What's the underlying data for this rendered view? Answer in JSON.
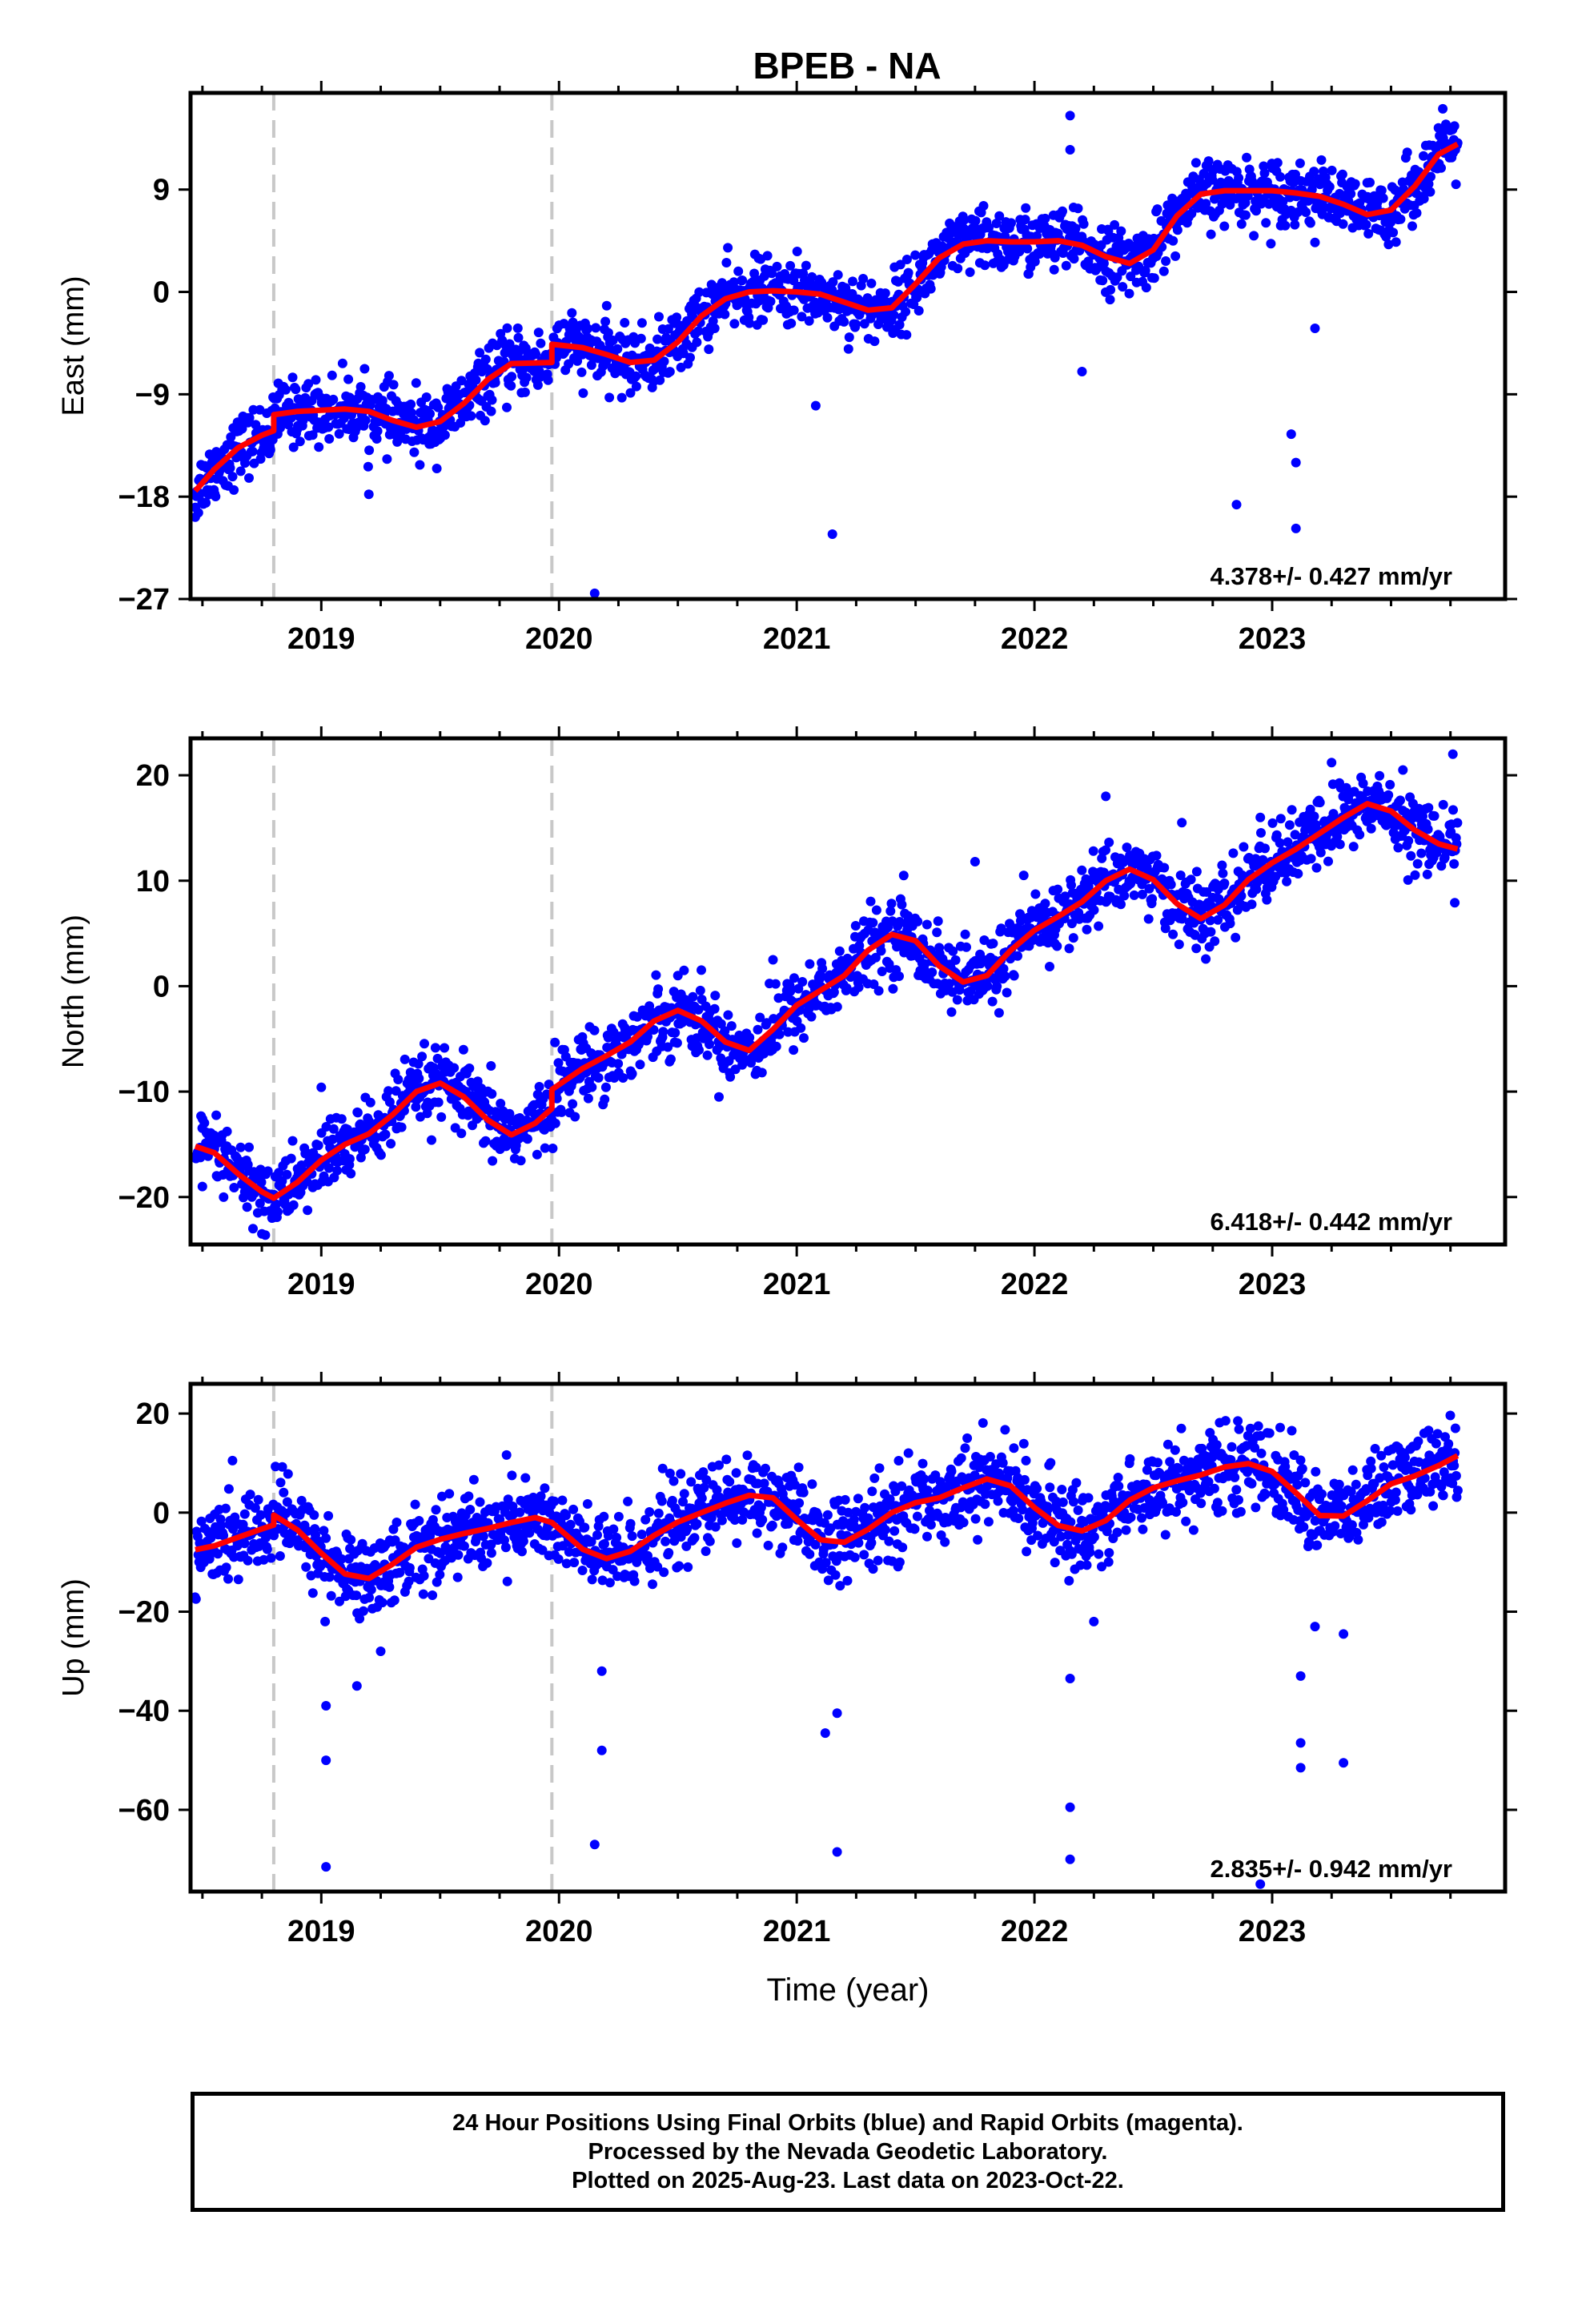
{
  "title": "BPEB - NA",
  "colors": {
    "points": "#0000ff",
    "fit": "#ff0000",
    "offset_line": "#c8c8c8",
    "frame": "#000000"
  },
  "offsets_year": [
    2018.8,
    2019.97
  ],
  "footer": {
    "line1": "24 Hour Positions Using Final Orbits (blue) and Rapid Orbits (magenta).",
    "line2": "Processed by the Nevada Geodetic Laboratory.",
    "line3": "Plotted on 2025-Aug-23. Last data on 2023-Oct-22."
  },
  "chart_data": [
    {
      "type": "scatter",
      "panel": "east",
      "title": "BPEB - NA",
      "xlabel": "",
      "ylabel": "East (mm)",
      "xlim": [
        2018.45,
        2023.98
      ],
      "ylim": [
        -27,
        17.5
      ],
      "xticks": [
        2019,
        2020,
        2021,
        2022,
        2023
      ],
      "yticks": [
        -27,
        -18,
        -9,
        0,
        9
      ],
      "grid": false,
      "rate_label": "4.378+/- 0.427 mm/yr",
      "fit_x": [
        2018.47,
        2018.55,
        2018.65,
        2018.75,
        2018.8,
        2018.8,
        2018.9,
        2019.0,
        2019.1,
        2019.2,
        2019.3,
        2019.4,
        2019.5,
        2019.6,
        2019.7,
        2019.8,
        2019.97,
        2019.97,
        2020.1,
        2020.2,
        2020.3,
        2020.4,
        2020.5,
        2020.6,
        2020.7,
        2020.8,
        2020.9,
        2021.0,
        2021.1,
        2021.2,
        2021.3,
        2021.4,
        2021.5,
        2021.6,
        2021.7,
        2021.8,
        2021.9,
        2022.0,
        2022.1,
        2022.2,
        2022.3,
        2022.4,
        2022.5,
        2022.6,
        2022.7,
        2022.8,
        2022.9,
        2023.0,
        2023.1,
        2023.2,
        2023.3,
        2023.4,
        2023.5,
        2023.6,
        2023.7,
        2023.78
      ],
      "fit_y": [
        -17.5,
        -15.6,
        -13.7,
        -12.6,
        -12.2,
        -10.8,
        -10.5,
        -10.4,
        -10.3,
        -10.5,
        -11.3,
        -11.9,
        -11.4,
        -9.8,
        -7.7,
        -6.3,
        -6.2,
        -4.6,
        -4.9,
        -5.5,
        -6.2,
        -6.0,
        -4.4,
        -2.1,
        -0.6,
        0.0,
        0.1,
        0.0,
        -0.2,
        -0.9,
        -1.6,
        -1.4,
        0.7,
        3.0,
        4.2,
        4.5,
        4.4,
        4.4,
        4.5,
        4.1,
        3.1,
        2.5,
        3.7,
        6.7,
        8.6,
        8.9,
        8.9,
        8.9,
        8.7,
        8.4,
        7.7,
        6.8,
        7.2,
        9.3,
        12.1,
        13.0
      ],
      "n_points": 1700,
      "noise_mm": 1.4,
      "outliers": [
        [
          2018.47,
          -19.8
        ],
        [
          2019.2,
          -17.8
        ],
        [
          2020.15,
          -26.5
        ],
        [
          2021.08,
          -10.0
        ],
        [
          2021.15,
          -21.3
        ],
        [
          2022.15,
          15.5
        ],
        [
          2022.15,
          12.5
        ],
        [
          2022.2,
          -7.0
        ],
        [
          2022.85,
          -18.7
        ],
        [
          2023.08,
          -12.5
        ],
        [
          2023.1,
          -20.8
        ],
        [
          2023.1,
          -15.0
        ],
        [
          2023.18,
          -3.2
        ]
      ]
    },
    {
      "type": "scatter",
      "panel": "north",
      "xlabel": "",
      "ylabel": "North (mm)",
      "xlim": [
        2018.45,
        2023.98
      ],
      "ylim": [
        -24.5,
        23.5
      ],
      "xticks": [
        2019,
        2020,
        2021,
        2022,
        2023
      ],
      "yticks": [
        -20,
        -10,
        0,
        10,
        20
      ],
      "grid": false,
      "rate_label": "6.418+/- 0.442 mm/yr",
      "fit_x": [
        2018.47,
        2018.55,
        2018.65,
        2018.75,
        2018.8,
        2018.9,
        2019.0,
        2019.1,
        2019.2,
        2019.3,
        2019.4,
        2019.5,
        2019.6,
        2019.7,
        2019.8,
        2019.9,
        2019.97,
        2019.97,
        2020.1,
        2020.2,
        2020.3,
        2020.4,
        2020.5,
        2020.6,
        2020.7,
        2020.8,
        2020.9,
        2021.0,
        2021.1,
        2021.2,
        2021.3,
        2021.4,
        2021.5,
        2021.6,
        2021.7,
        2021.8,
        2021.9,
        2022.0,
        2022.1,
        2022.2,
        2022.3,
        2022.4,
        2022.5,
        2022.6,
        2022.7,
        2022.8,
        2022.9,
        2023.0,
        2023.1,
        2023.2,
        2023.3,
        2023.4,
        2023.5,
        2023.6,
        2023.7,
        2023.78
      ],
      "fit_y": [
        -15.2,
        -15.8,
        -17.8,
        -19.5,
        -20.1,
        -18.6,
        -16.5,
        -15.0,
        -14.0,
        -12.2,
        -10.0,
        -9.2,
        -10.5,
        -12.7,
        -14.1,
        -13.0,
        -11.6,
        -9.8,
        -7.8,
        -6.6,
        -5.3,
        -3.3,
        -2.3,
        -3.3,
        -5.3,
        -6.1,
        -4.1,
        -1.8,
        -0.4,
        1.0,
        3.4,
        4.9,
        4.3,
        1.9,
        0.4,
        1.0,
        3.4,
        5.3,
        6.6,
        8.0,
        10.0,
        11.1,
        10.1,
        7.8,
        6.4,
        7.7,
        10.1,
        11.7,
        13.0,
        14.5,
        16.0,
        17.3,
        16.6,
        14.8,
        13.5,
        13.0
      ],
      "n_points": 1700,
      "noise_mm": 1.7,
      "outliers": [
        [
          2018.5,
          -19.0
        ],
        [
          2018.75,
          -23.5
        ],
        [
          2019.0,
          -9.6
        ],
        [
          2020.5,
          1.0
        ],
        [
          2020.9,
          2.5
        ],
        [
          2021.45,
          10.5
        ],
        [
          2021.75,
          11.8
        ],
        [
          2022.3,
          18.0
        ],
        [
          2022.62,
          15.5
        ],
        [
          2022.95,
          16.0
        ],
        [
          2023.25,
          21.2
        ],
        [
          2023.55,
          20.5
        ],
        [
          2023.76,
          22.0
        ]
      ]
    },
    {
      "type": "scatter",
      "panel": "up",
      "xlabel": "Time (year)",
      "ylabel": "Up (mm)",
      "xlim": [
        2018.45,
        2023.98
      ],
      "ylim": [
        -76.5,
        26
      ],
      "xticks": [
        2019,
        2020,
        2021,
        2022,
        2023
      ],
      "yticks": [
        -60,
        -40,
        -20,
        0,
        20
      ],
      "grid": false,
      "rate_label": "2.835+/- 0.942 mm/yr",
      "fit_x": [
        2018.47,
        2018.55,
        2018.65,
        2018.75,
        2018.8,
        2018.8,
        2018.9,
        2019.0,
        2019.1,
        2019.2,
        2019.3,
        2019.4,
        2019.5,
        2019.6,
        2019.7,
        2019.8,
        2019.9,
        2019.97,
        2019.97,
        2020.1,
        2020.2,
        2020.3,
        2020.4,
        2020.5,
        2020.6,
        2020.7,
        2020.8,
        2020.9,
        2021.0,
        2021.1,
        2021.2,
        2021.3,
        2021.4,
        2021.5,
        2021.6,
        2021.7,
        2021.8,
        2021.9,
        2022.0,
        2022.1,
        2022.2,
        2022.3,
        2022.4,
        2022.5,
        2022.6,
        2022.7,
        2022.8,
        2022.9,
        2023.0,
        2023.1,
        2023.2,
        2023.3,
        2023.4,
        2023.5,
        2023.6,
        2023.7,
        2023.78
      ],
      "fit_y": [
        -7.5,
        -6.7,
        -5.0,
        -3.3,
        -2.5,
        -0.5,
        -3.5,
        -8.2,
        -12.4,
        -13.3,
        -10.4,
        -7.0,
        -5.4,
        -4.2,
        -3.2,
        -2.0,
        -1.0,
        -2.0,
        -2.0,
        -7.4,
        -9.3,
        -7.8,
        -4.6,
        -1.9,
        0.0,
        1.9,
        3.5,
        3.0,
        -1.4,
        -5.5,
        -6.0,
        -3.4,
        0.0,
        2.0,
        3.0,
        5.0,
        6.8,
        5.4,
        1.0,
        -2.6,
        -3.7,
        -1.6,
        2.5,
        5.0,
        6.4,
        7.6,
        9.2,
        9.9,
        8.3,
        4.0,
        -0.6,
        -0.7,
        2.4,
        5.8,
        7.4,
        9.5,
        11.5
      ],
      "n_points": 1700,
      "noise_mm": 4.2,
      "outliers": [
        [
          2019.02,
          -71.5
        ],
        [
          2019.02,
          -50.0
        ],
        [
          2019.02,
          -39.0
        ],
        [
          2019.15,
          -35.0
        ],
        [
          2019.25,
          -28.0
        ],
        [
          2020.15,
          -67.0
        ],
        [
          2020.18,
          -48.0
        ],
        [
          2020.18,
          -32.0
        ],
        [
          2021.12,
          -44.5
        ],
        [
          2021.17,
          -40.5
        ],
        [
          2021.17,
          -68.5
        ],
        [
          2022.15,
          -59.5
        ],
        [
          2022.15,
          -70.0
        ],
        [
          2022.15,
          -33.5
        ],
        [
          2022.25,
          -22.0
        ],
        [
          2023.12,
          -33.0
        ],
        [
          2023.12,
          -46.5
        ],
        [
          2023.12,
          -51.5
        ],
        [
          2023.18,
          -23.0
        ],
        [
          2023.3,
          -50.5
        ],
        [
          2023.3,
          -24.5
        ],
        [
          2022.95,
          -75.0
        ]
      ]
    }
  ]
}
